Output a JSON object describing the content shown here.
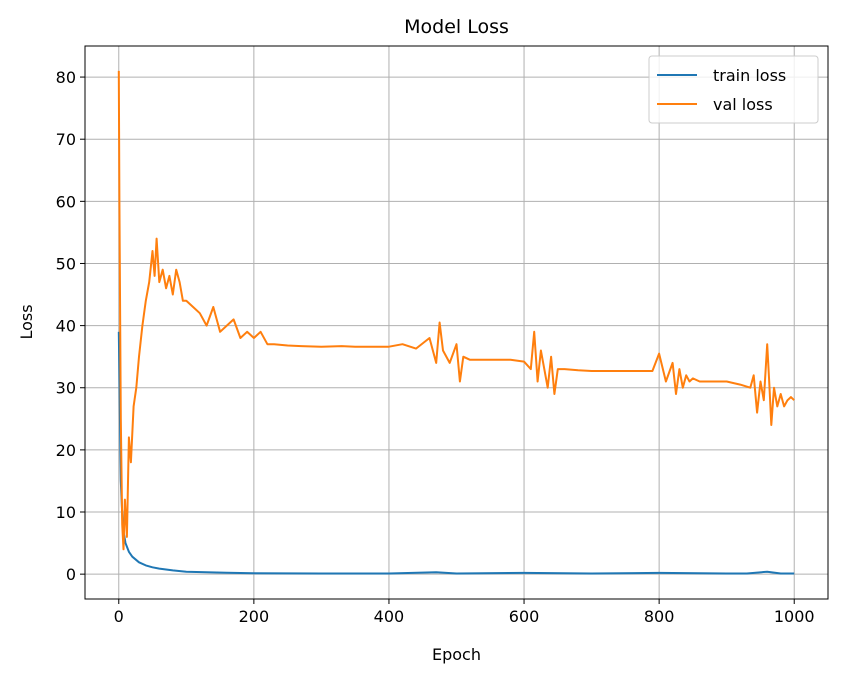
{
  "chart_data": {
    "type": "line",
    "title": "Model Loss",
    "xlabel": "Epoch",
    "ylabel": "Loss",
    "xlim": [
      -50,
      1050
    ],
    "ylim": [
      -4,
      85
    ],
    "xticks": [
      0,
      200,
      400,
      600,
      800,
      1000
    ],
    "yticks": [
      0,
      10,
      20,
      30,
      40,
      50,
      60,
      70,
      80
    ],
    "grid": true,
    "legend_position": "top-right",
    "series": [
      {
        "name": "train loss",
        "color": "#1f77b4",
        "x": [
          0,
          3,
          6,
          10,
          15,
          20,
          30,
          40,
          50,
          60,
          80,
          100,
          130,
          160,
          200,
          300,
          400,
          470,
          500,
          600,
          700,
          800,
          900,
          930,
          960,
          980,
          1000
        ],
        "y": [
          39,
          15,
          7.5,
          5,
          3.6,
          2.8,
          1.9,
          1.4,
          1.1,
          0.9,
          0.6,
          0.4,
          0.3,
          0.22,
          0.15,
          0.1,
          0.1,
          0.3,
          0.1,
          0.2,
          0.1,
          0.2,
          0.1,
          0.1,
          0.4,
          0.1,
          0.1
        ]
      },
      {
        "name": "val loss",
        "color": "#ff7f0e",
        "x": [
          0,
          1,
          3,
          5,
          7,
          9,
          12,
          15,
          18,
          22,
          26,
          30,
          35,
          40,
          45,
          50,
          53,
          56,
          60,
          65,
          70,
          75,
          80,
          85,
          90,
          95,
          100,
          110,
          120,
          130,
          140,
          150,
          160,
          170,
          180,
          190,
          200,
          210,
          220,
          230,
          250,
          270,
          300,
          330,
          350,
          380,
          400,
          420,
          440,
          460,
          470,
          475,
          480,
          490,
          500,
          505,
          510,
          520,
          530,
          550,
          580,
          600,
          610,
          615,
          620,
          625,
          630,
          635,
          640,
          645,
          650,
          660,
          680,
          700,
          720,
          750,
          780,
          790,
          800,
          810,
          820,
          825,
          830,
          835,
          840,
          845,
          850,
          860,
          880,
          900,
          920,
          935,
          940,
          945,
          950,
          955,
          960,
          963,
          966,
          970,
          975,
          980,
          985,
          990,
          995,
          1000
        ],
        "y": [
          81,
          60,
          25,
          8,
          4,
          12,
          6,
          22,
          18,
          27,
          30,
          35,
          40,
          44,
          47,
          52,
          48,
          54,
          47,
          49,
          46,
          48,
          45,
          49,
          47,
          44,
          44,
          43,
          42,
          40,
          43,
          39,
          40,
          41,
          38,
          39,
          38,
          39,
          37,
          37,
          36.8,
          36.7,
          36.6,
          36.7,
          36.6,
          36.6,
          36.6,
          37,
          36.3,
          38,
          34,
          40.5,
          36,
          34,
          37,
          31,
          35,
          34.5,
          34.5,
          34.5,
          34.5,
          34.2,
          33,
          39,
          31,
          36,
          33,
          30,
          35,
          29,
          33,
          33,
          32.8,
          32.7,
          32.7,
          32.7,
          32.7,
          32.7,
          35.5,
          31,
          34,
          29,
          33,
          30,
          32,
          31,
          31.5,
          31,
          31,
          31,
          30.5,
          30,
          32,
          26,
          31,
          28,
          37,
          31,
          24,
          30,
          27,
          29,
          27,
          28,
          28.5,
          28
        ]
      }
    ]
  }
}
